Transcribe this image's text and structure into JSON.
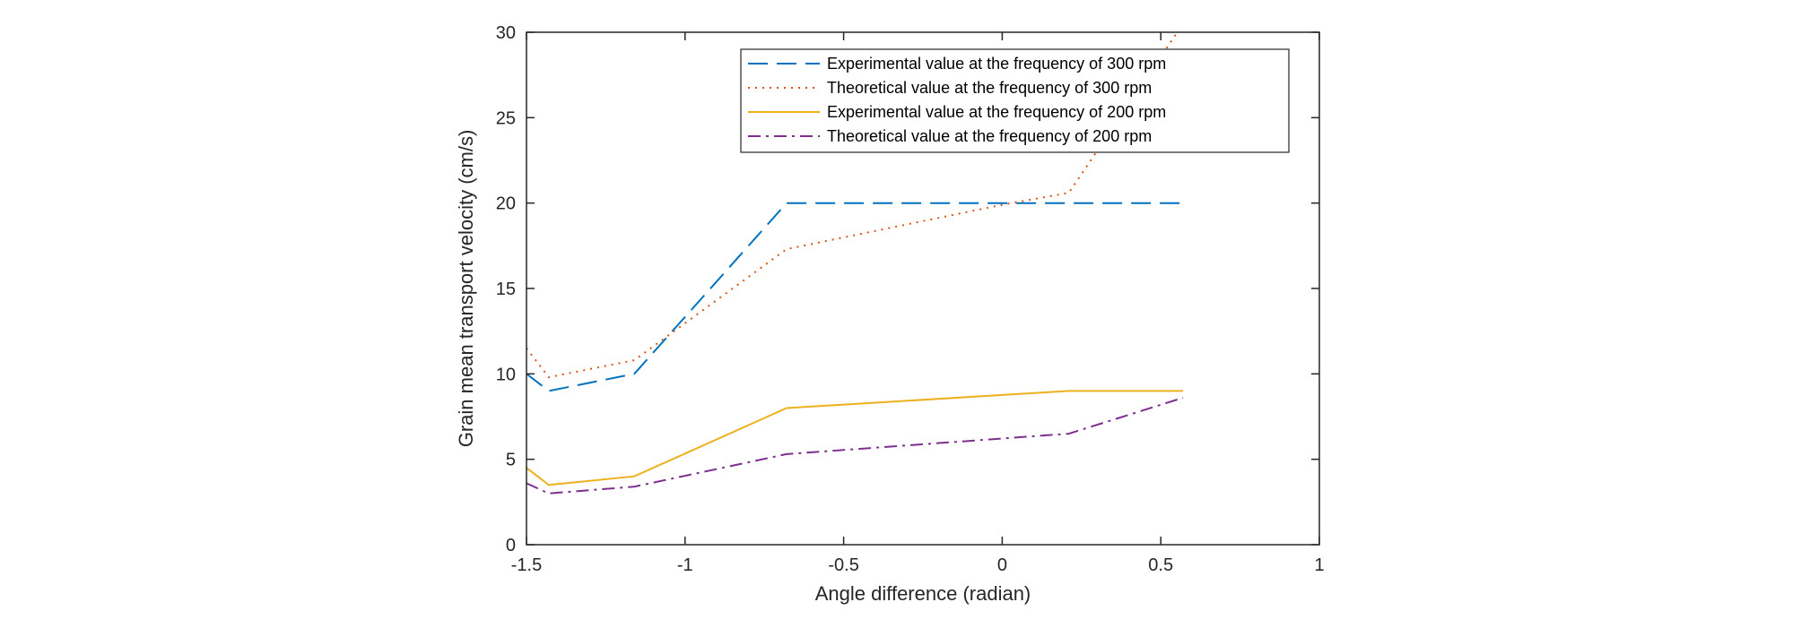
{
  "chart_data": {
    "type": "line",
    "xlabel": "Angle difference (radian)",
    "ylabel": "Grain mean transport velocity (cm/s)",
    "xlim": [
      -1.5,
      1
    ],
    "ylim": [
      0,
      30
    ],
    "xticks": [
      -1.5,
      -1,
      -0.5,
      0,
      0.5,
      1
    ],
    "yticks": [
      0,
      5,
      10,
      15,
      20,
      25,
      30
    ],
    "xtick_labels": [
      "-1.5",
      "-1",
      "-0.5",
      "0",
      "0.5",
      "1"
    ],
    "ytick_labels": [
      "0",
      "5",
      "10",
      "15",
      "20",
      "25",
      "30"
    ],
    "grid": false,
    "legend_position": "top-right",
    "series": [
      {
        "name": "Experimental value at the frequency of 300 rpm",
        "color": "#0072BD",
        "style": "dashed",
        "x": [
          -1.5,
          -1.43,
          -1.16,
          -0.68,
          0.21,
          0.57
        ],
        "y": [
          10.0,
          9.0,
          10.0,
          20.0,
          20.0,
          20.0
        ]
      },
      {
        "name": "Theoretical value at the frequency of 300 rpm",
        "color": "#D95319",
        "style": "dotted",
        "x": [
          -1.5,
          -1.43,
          -1.16,
          -0.68,
          0.0,
          0.21,
          0.57
        ],
        "y": [
          11.5,
          9.8,
          10.8,
          17.3,
          19.9,
          20.6,
          30.5
        ]
      },
      {
        "name": "Experimental value at the frequency of 200 rpm",
        "color": "#EDB120",
        "style": "solid",
        "x": [
          -1.5,
          -1.43,
          -1.16,
          -0.68,
          0.21,
          0.57
        ],
        "y": [
          4.5,
          3.5,
          4.0,
          8.0,
          9.0,
          9.0
        ]
      },
      {
        "name": "Theoretical value at the frequency of 200 rpm",
        "color": "#7E2F8E",
        "style": "dashdot",
        "x": [
          -1.5,
          -1.43,
          -1.16,
          -0.68,
          0.21,
          0.57
        ],
        "y": [
          3.6,
          3.0,
          3.4,
          5.3,
          6.5,
          8.6
        ]
      }
    ]
  }
}
